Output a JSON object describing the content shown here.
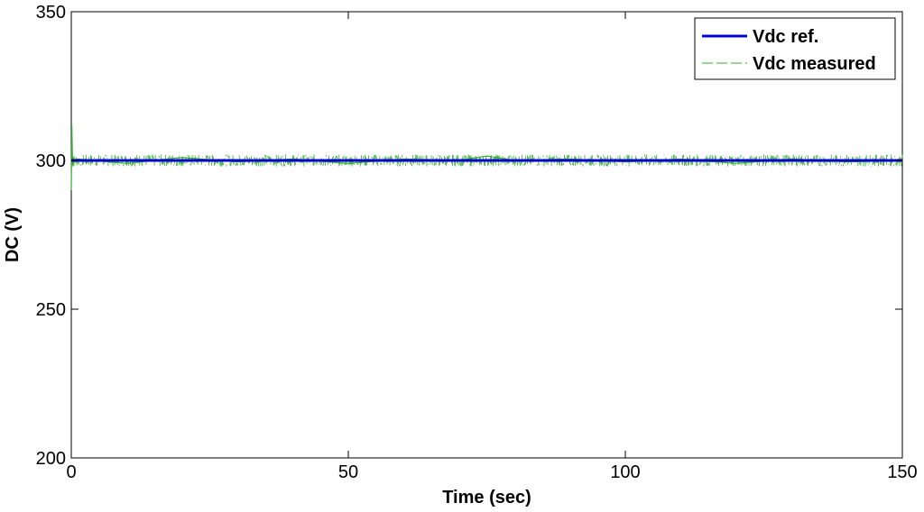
{
  "chart_data": {
    "type": "line",
    "title": "",
    "xlabel": "Time (sec)",
    "ylabel": "DC (V)",
    "xlim": [
      0,
      150
    ],
    "ylim": [
      200,
      350
    ],
    "xticks": [
      0,
      50,
      100,
      150
    ],
    "yticks": [
      200,
      250,
      300,
      350
    ],
    "grid": false,
    "legend_position": "top-right",
    "series": [
      {
        "name": "Vdc ref.",
        "color": "#0000cc",
        "style": "solid",
        "x": [
          0,
          150
        ],
        "y": [
          300,
          300
        ]
      },
      {
        "name": "Vdc measured",
        "color": "#33aa33",
        "style": "dashed",
        "x": [
          0,
          0.1,
          0.2,
          0.3,
          0.4,
          0.5,
          1,
          10,
          20,
          30,
          40,
          50,
          60,
          70,
          75,
          80,
          90,
          100,
          110,
          120,
          130,
          140,
          150
        ],
        "y": [
          290,
          312,
          302,
          298,
          301,
          299.5,
          300.5,
          299,
          301,
          299.5,
          300.5,
          299,
          300.5,
          300,
          301.5,
          300,
          300.5,
          299.5,
          300.5,
          299,
          300.5,
          299.5,
          300
        ]
      }
    ],
    "noise_band": {
      "min": 298,
      "max": 302
    }
  }
}
